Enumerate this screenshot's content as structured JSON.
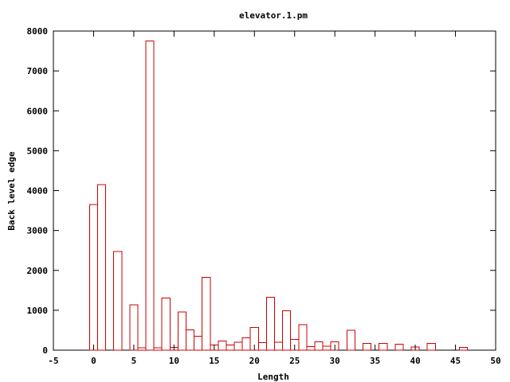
{
  "chart_data": {
    "type": "bar",
    "title": "elevator.1.pm",
    "xlabel": "Length",
    "ylabel": "Back level edge",
    "xlim": [
      -5,
      50
    ],
    "ylim": [
      0,
      8000
    ],
    "xticks": [
      -5,
      0,
      5,
      10,
      15,
      20,
      25,
      30,
      35,
      40,
      45,
      50
    ],
    "yticks": [
      0,
      1000,
      2000,
      3000,
      4000,
      5000,
      6000,
      7000,
      8000
    ],
    "bar_width": 1,
    "bar_color": "#cc0000",
    "grid": false,
    "x": [
      0,
      1,
      3,
      5,
      6,
      7,
      8,
      9,
      10,
      11,
      12,
      13,
      14,
      15,
      16,
      17,
      18,
      19,
      20,
      21,
      22,
      23,
      24,
      25,
      26,
      27,
      28,
      29,
      30,
      32,
      34,
      36,
      38,
      40,
      42,
      46
    ],
    "values": [
      3650,
      4150,
      2470,
      1140,
      60,
      7750,
      60,
      1310,
      70,
      960,
      510,
      350,
      1830,
      130,
      230,
      130,
      200,
      310,
      570,
      190,
      1330,
      200,
      990,
      270,
      640,
      90,
      210,
      100,
      210,
      500,
      170,
      170,
      150,
      80,
      170,
      70
    ]
  }
}
